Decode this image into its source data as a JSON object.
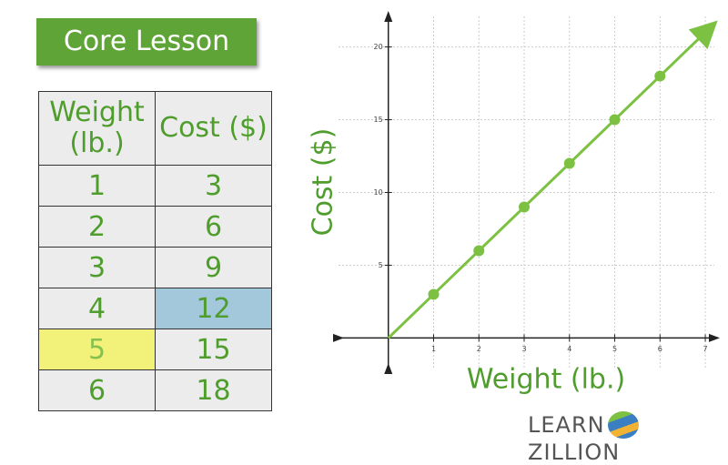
{
  "badge": "Core Lesson",
  "table": {
    "header": [
      "Weight (lb.)",
      "Cost ($)"
    ],
    "rows": [
      [
        "1",
        "3"
      ],
      [
        "2",
        "6"
      ],
      [
        "3",
        "9"
      ],
      [
        "4",
        "12"
      ],
      [
        "5",
        "15"
      ],
      [
        "6",
        "18"
      ]
    ]
  },
  "logo": [
    "LEARN",
    "ZILLION"
  ],
  "chart_data": {
    "type": "line",
    "xlabel": "Weight (lb.)",
    "ylabel": "Cost ($)",
    "xlim": [
      -1.1,
      7.2
    ],
    "ylim": [
      -2.1,
      22.1
    ],
    "xticks": [
      1,
      2,
      3,
      4,
      5,
      6,
      7
    ],
    "yticks": [
      5,
      10,
      15,
      20
    ],
    "grid": true,
    "series": [
      {
        "color": "#7cc142",
        "x": [
          0,
          7.1
        ],
        "values": [
          0,
          21.3
        ],
        "markers": false,
        "arrow": true
      },
      {
        "color": "#7cc142",
        "x": [
          1,
          2,
          3,
          4,
          5,
          6
        ],
        "values": [
          3,
          6,
          9,
          12,
          15,
          18
        ],
        "markers": true,
        "arrow": false
      }
    ]
  }
}
